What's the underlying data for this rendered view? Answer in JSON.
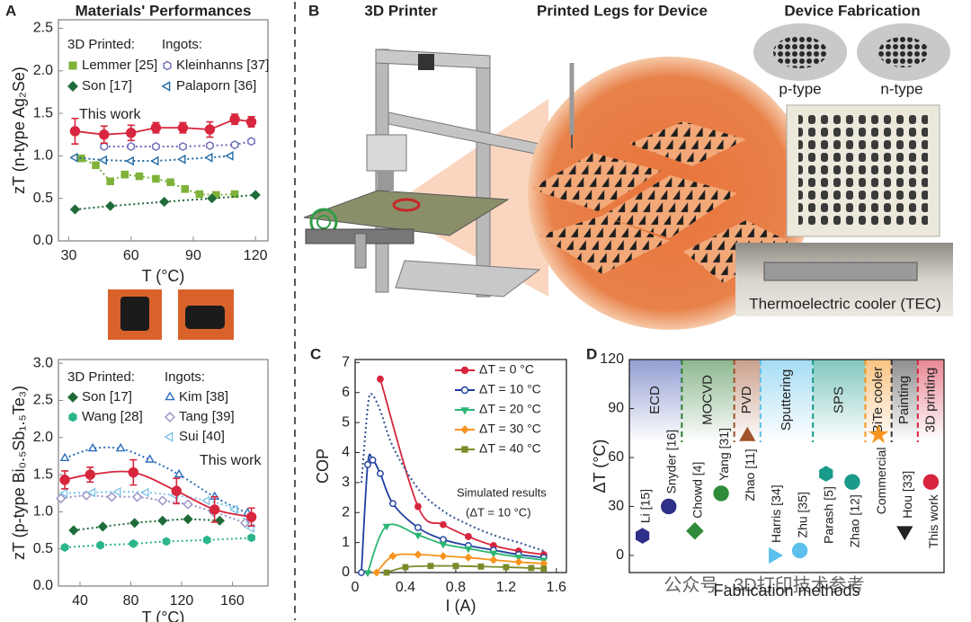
{
  "chart_data": [
    {
      "type": "line",
      "panel": "A",
      "title": "Materials' Performances",
      "xlabel": "T (°C)",
      "ylabel": "zT (n-type Ag₂Se)",
      "xlim": [
        25,
        126
      ],
      "ylim": [
        0,
        2.6
      ],
      "xticks": [
        30,
        60,
        90,
        120
      ],
      "yticks": [
        {
          "value": 0,
          "label": "0.0"
        },
        0.5,
        {
          "value": 1,
          "label": "1.0"
        },
        1.5,
        {
          "value": 2,
          "label": "2.0"
        },
        2.5
      ],
      "smooth": false,
      "annotated_series": [
        {
          "name": "This work",
          "color": "#d7263d",
          "marker": "circle",
          "line": "solid",
          "x": [
            33,
            47,
            60,
            72,
            85,
            98,
            110,
            118
          ],
          "values": [
            1.29,
            1.25,
            1.27,
            1.33,
            1.33,
            1.31,
            1.43,
            1.4
          ],
          "errors": [
            0.15,
            0.1,
            0.09,
            0.06,
            0.06,
            0.09,
            0.06,
            0.06
          ]
        }
      ],
      "legend_groups": [
        {
          "title": "3D Printed:",
          "color": "#5a9a2e",
          "series": [
            {
              "name": "Lemmer [25]",
              "color": "#7fb239",
              "marker": "square",
              "line": "dotted",
              "x": [
                36,
                43,
                50,
                57,
                64,
                72,
                79,
                86,
                93,
                101,
                110
              ],
              "values": [
                0.97,
                0.89,
                0.7,
                0.78,
                0.76,
                0.73,
                0.69,
                0.61,
                0.55,
                0.54,
                0.55
              ]
            },
            {
              "name": "Son [17]",
              "color": "#1f6b3a",
              "marker": "diamond",
              "line": "dotted",
              "x": [
                33,
                50,
                76,
                99,
                120
              ],
              "values": [
                0.37,
                0.41,
                0.46,
                0.5,
                0.54
              ]
            }
          ]
        },
        {
          "title": "Ingots:",
          "color": "#2a6ebb",
          "series": [
            {
              "name": "Kleinhanns [37]",
              "color": "#6a6ab8",
              "marker": "hexagon",
              "open": true,
              "line": "dotted",
              "x": [
                47,
                60,
                72,
                85,
                98,
                110,
                118
              ],
              "values": [
                1.11,
                1.11,
                1.11,
                1.11,
                1.12,
                1.13,
                1.17
              ]
            },
            {
              "name": "Palaporn [36]",
              "color": "#1f6aa5",
              "marker": "triangle-left",
              "open": true,
              "line": "dotted",
              "x": [
                33,
                47,
                60,
                72,
                85,
                98,
                108
              ],
              "values": [
                0.98,
                0.95,
                0.94,
                0.94,
                0.96,
                0.98,
                1.0
              ]
            }
          ]
        }
      ]
    },
    {
      "type": "line",
      "xlabel": "T (°C)",
      "ylabel": "zT (p-type Bi₀.₅Sb₁.₅Te₃)",
      "xlim": [
        23,
        188
      ],
      "ylim": [
        0,
        3.05
      ],
      "xticks": [
        40,
        80,
        120,
        160
      ],
      "yticks": [
        {
          "value": 0,
          "label": "0.0"
        },
        0.5,
        {
          "value": 1,
          "label": "1.0"
        },
        1.5,
        {
          "value": 2,
          "label": "2.0"
        },
        2.5,
        {
          "value": 3,
          "label": "3.0"
        }
      ],
      "smooth": true,
      "annotated_series": [
        {
          "name": "This work",
          "color": "#d7263d",
          "marker": "circle",
          "line": "solid",
          "x": [
            28,
            48,
            82,
            116,
            146,
            175
          ],
          "values": [
            1.43,
            1.5,
            1.53,
            1.28,
            1.03,
            0.93
          ],
          "errors": [
            0.12,
            0.1,
            0.17,
            0.17,
            0.17,
            0.12
          ]
        }
      ],
      "legend_groups": [
        {
          "title": "3D Printed:",
          "color": "#5a9a2e",
          "series": [
            {
              "name": "Son [17]",
              "color": "#1f6b3a",
              "marker": "diamond",
              "line": "dotted",
              "x": [
                35,
                58,
                83,
                105,
                125,
                150
              ],
              "values": [
                0.75,
                0.8,
                0.85,
                0.88,
                0.9,
                0.88
              ]
            },
            {
              "name": "Wang [28]",
              "color": "#2bb58c",
              "marker": "hexagon",
              "line": "dotted",
              "x": [
                28,
                56,
                82,
                108,
                140,
                175
              ],
              "values": [
                0.52,
                0.55,
                0.57,
                0.6,
                0.62,
                0.65
              ]
            }
          ]
        },
        {
          "title": "Ingots:",
          "color": "#2a6ebb",
          "series": [
            {
              "name": "Kim [38]",
              "color": "#2a6ebb",
              "marker": "triangle-up",
              "open": true,
              "line": "dotted",
              "x": [
                28,
                50,
                72,
                95,
                118,
                146,
                172
              ],
              "values": [
                1.72,
                1.85,
                1.85,
                1.7,
                1.5,
                1.2,
                0.98
              ]
            },
            {
              "name": "Tang [39]",
              "color": "#9a8fc4",
              "marker": "diamond",
              "open": true,
              "line": "dotted",
              "x": [
                25,
                45,
                65,
                85,
                105,
                125,
                145,
                170
              ],
              "values": [
                1.18,
                1.22,
                1.2,
                1.2,
                1.15,
                1.1,
                1.0,
                0.85
              ]
            },
            {
              "name": "Sui [40]",
              "color": "#7fc4e8",
              "marker": "triangle-left",
              "open": true,
              "line": "dotted",
              "x": [
                28,
                50,
                70,
                92,
                115,
                140,
                162,
                175
              ],
              "values": [
                1.25,
                1.26,
                1.27,
                1.26,
                1.22,
                1.15,
                1.03,
                0.78
              ]
            }
          ]
        }
      ]
    },
    {
      "type": "line",
      "panel": "C",
      "xlabel": "I (A)",
      "ylabel": "COP",
      "xlim": [
        0,
        1.68
      ],
      "ylim": [
        0,
        7.1
      ],
      "xticks": [
        0,
        0.4,
        0.8,
        1.2,
        1.6
      ],
      "yticks": [
        0,
        1,
        2,
        3,
        4,
        5,
        6,
        7
      ],
      "smooth": true,
      "series": [
        {
          "name": "ΔT = 0 °C",
          "color": "#d7263d",
          "marker": "circle",
          "line": "solid",
          "x": [
            0.2,
            0.5,
            0.7,
            0.9,
            1.1,
            1.3,
            1.5
          ],
          "values": [
            6.45,
            2.2,
            1.6,
            1.2,
            0.9,
            0.72,
            0.6
          ]
        },
        {
          "name": "ΔT = 10 °C",
          "color": "#1f3f9f",
          "marker": "circle",
          "open": true,
          "line": "solid",
          "x": [
            0.05,
            0.1,
            0.14,
            0.2,
            0.3,
            0.5,
            0.7,
            0.9,
            1.1,
            1.3,
            1.5
          ],
          "values": [
            0,
            3.6,
            3.75,
            3.3,
            2.3,
            1.5,
            1.1,
            0.9,
            0.75,
            0.6,
            0.5
          ]
        },
        {
          "name": "ΔT = 20 °C",
          "color": "#2bb673",
          "marker": "triangle-down",
          "line": "solid",
          "x": [
            0.1,
            0.25,
            0.5,
            0.7,
            0.9,
            1.1,
            1.3,
            1.5
          ],
          "values": [
            0,
            1.55,
            1.25,
            0.95,
            0.8,
            0.65,
            0.52,
            0.42
          ]
        },
        {
          "name": "ΔT = 30 °C",
          "color": "#f7941d",
          "marker": "diamond",
          "line": "solid",
          "x": [
            0.17,
            0.3,
            0.5,
            0.7,
            0.9,
            1.1,
            1.3,
            1.5
          ],
          "values": [
            0,
            0.55,
            0.6,
            0.55,
            0.5,
            0.42,
            0.35,
            0.3
          ]
        },
        {
          "name": "ΔT = 40 °C",
          "color": "#7a8b2a",
          "marker": "square",
          "line": "solid",
          "x": [
            0.25,
            0.4,
            0.6,
            0.8,
            1.0,
            1.2,
            1.4,
            1.5
          ],
          "values": [
            0,
            0.18,
            0.22,
            0.22,
            0.2,
            0.18,
            0.15,
            0.13
          ]
        }
      ],
      "annotated_series": [
        {
          "name": "Simulated results",
          "note": "(ΔT = 10 °C)",
          "color": "#2f4f8f",
          "line": "dotted",
          "x": [
            0.05,
            0.1,
            0.13,
            0.2,
            0.3,
            0.5,
            0.7,
            0.9,
            1.1,
            1.3,
            1.5
          ],
          "values": [
            3,
            5.5,
            5.95,
            5.4,
            4.2,
            2.8,
            2.05,
            1.6,
            1.25,
            1.0,
            0.72
          ]
        }
      ]
    },
    {
      "type": "category-scatter",
      "panel": "D",
      "xlabel": "Fabrication methods",
      "ylabel": "ΔT (°C)",
      "ylim": [
        -10.5,
        120
      ],
      "yticks": [
        0,
        30,
        60,
        90,
        120
      ],
      "groups": [
        {
          "name": "ECD",
          "color": "#3b4fae",
          "points": [
            {
              "label": "Li [15]",
              "value": 12,
              "color": "#2e2f86",
              "marker": "hexagon"
            },
            {
              "label": "Snyder [16]",
              "value": 30,
              "color": "#2e2f86",
              "marker": "circle"
            }
          ]
        },
        {
          "name": "MOCVD",
          "color": "#2e7d32",
          "points": [
            {
              "label": "Chowd [4]",
              "value": 15,
              "color": "#2e8b3a",
              "marker": "diamond"
            },
            {
              "label": "Yang [31]",
              "value": 38,
              "color": "#2e8b3a",
              "marker": "circle"
            }
          ]
        },
        {
          "name": "PVD",
          "color": "#a0522d",
          "points": [
            {
              "label": "Zhao [11]",
              "value": 73,
              "color": "#a0522d",
              "marker": "triangle-up"
            }
          ]
        },
        {
          "name": "Sputtering",
          "color": "#5bc0eb",
          "points": [
            {
              "label": "Harris [34]",
              "value": 0,
              "color": "#5bc0eb",
              "marker": "triangle-right"
            },
            {
              "label": "Zhu [35]",
              "value": 3,
              "color": "#5bc0eb",
              "marker": "circle"
            }
          ]
        },
        {
          "name": "SPS",
          "color": "#1a9a8a",
          "points": [
            {
              "label": "Parash [5]",
              "value": 50,
              "color": "#1a9a8a",
              "marker": "hexagon"
            },
            {
              "label": "Zhao [12]",
              "value": 45,
              "color": "#1a9a8a",
              "marker": "circle"
            }
          ]
        },
        {
          "name": "BiTe cooler",
          "color": "#f7941d",
          "points": [
            {
              "label": "Commercial",
              "value": 74,
              "color": "#f7941d",
              "marker": "star"
            }
          ]
        },
        {
          "name": "Painting",
          "color": "#333333",
          "points": [
            {
              "label": "Hou [33]",
              "value": 15,
              "color": "#222222",
              "marker": "triangle-down"
            }
          ]
        },
        {
          "name": "3D printing",
          "color": "#d7263d",
          "points": [
            {
              "label": "This work",
              "value": 45,
              "color": "#d7263d",
              "marker": "circle"
            }
          ]
        }
      ]
    }
  ],
  "panel_b": {
    "label": "B",
    "titles": [
      "3D Printer",
      "Printed Legs for Device",
      "Device Fabrication"
    ],
    "p_type": "p-type",
    "n_type": "n-type",
    "tec": "Thermoelectric cooler (TEC)"
  },
  "watermark": "公众号 · 3D打印技术参考"
}
